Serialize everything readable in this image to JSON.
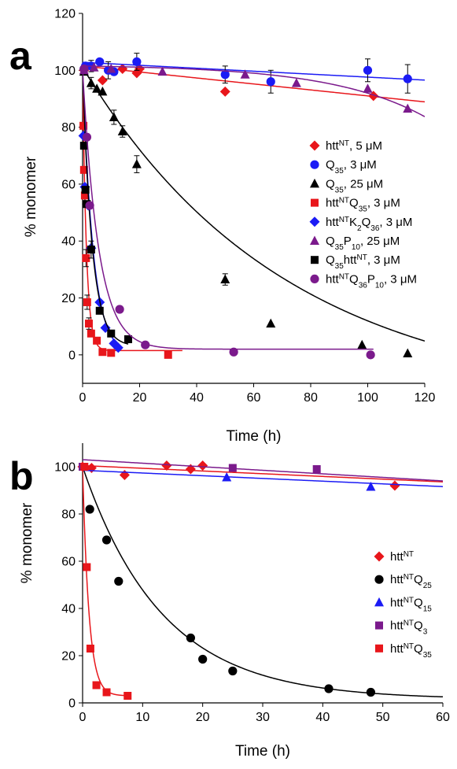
{
  "figure": {
    "panels": [
      "a",
      "b"
    ]
  },
  "chart_data": [
    {
      "panel_label": "a",
      "type": "scatter",
      "xlabel": "Time (h)",
      "ylabel": "% monomer",
      "xlim": [
        0,
        120
      ],
      "ylim": [
        -10,
        120
      ],
      "xticks": [
        0,
        20,
        40,
        60,
        80,
        100,
        120
      ],
      "yticks": [
        0,
        20,
        40,
        60,
        80,
        100,
        120
      ],
      "grid": false,
      "legend_position": "right",
      "series": [
        {
          "name": "htt^NT, 5 μM",
          "label_parts": [
            [
              "htt",
              ""
            ],
            [
              "NT",
              "sup"
            ],
            [
              ", 5 μM",
              ""
            ]
          ],
          "color": "#e8161b",
          "marker": "diamond",
          "points": [
            [
              0.5,
              100
            ],
            [
              1,
              101
            ],
            [
              7,
              96.5
            ],
            [
              14,
              100.5
            ],
            [
              19,
              99
            ],
            [
              20,
              100.5
            ],
            [
              50,
              92.5
            ],
            [
              102,
              91
            ]
          ],
          "fit": {
            "type": "linear",
            "a": 101.5,
            "b": -0.105,
            "xmax": 120
          }
        },
        {
          "name": "Q35, 3 μM",
          "label_parts": [
            [
              "Q",
              ""
            ],
            [
              "35",
              "sub"
            ],
            [
              ", 3 μM",
              ""
            ]
          ],
          "color": "#1b1bf5",
          "marker": "circle",
          "points": [
            [
              0.5,
              100.5
            ],
            [
              1,
              101.5
            ],
            [
              3,
              101.5
            ],
            [
              6,
              103
            ],
            [
              9,
              100
            ],
            [
              11,
              99.5
            ],
            [
              19,
              103
            ],
            [
              50,
              98.5
            ],
            [
              66,
              96
            ],
            [
              100,
              100
            ],
            [
              114,
              97
            ]
          ],
          "error": [
            [
              3,
              2
            ],
            [
              9,
              3
            ],
            [
              19,
              3
            ],
            [
              50,
              3
            ],
            [
              66,
              4
            ],
            [
              100,
              4
            ],
            [
              114,
              5
            ]
          ],
          "fit": {
            "type": "linear",
            "a": 102.8,
            "b": -0.052,
            "xmax": 120
          }
        },
        {
          "name": "Q35, 25 μM",
          "label_parts": [
            [
              "Q",
              ""
            ],
            [
              "35",
              "sub"
            ],
            [
              ", 25 μM",
              ""
            ]
          ],
          "color": "#000000",
          "marker": "triangle",
          "points": [
            [
              0.5,
              99.5
            ],
            [
              3,
              95.5
            ],
            [
              5,
              93.5
            ],
            [
              7,
              92.5
            ],
            [
              11,
              83.5
            ],
            [
              14,
              78.5
            ],
            [
              19,
              67
            ],
            [
              50,
              26.5
            ],
            [
              66,
              11
            ],
            [
              98,
              3.5
            ],
            [
              114,
              0.5
            ]
          ],
          "error": [
            [
              3,
              2
            ],
            [
              11,
              2.5
            ],
            [
              14,
              2
            ],
            [
              19,
              3
            ],
            [
              50,
              2
            ]
          ],
          "fit": {
            "type": "exp_offset",
            "c": -17,
            "amp": 118,
            "k": 0.01405,
            "xmax": 120
          }
        },
        {
          "name": "htt^NTQ35, 3 μM",
          "label_parts": [
            [
              "htt",
              ""
            ],
            [
              "NT",
              "sup"
            ],
            [
              "Q",
              ""
            ],
            [
              "35",
              "sub"
            ],
            [
              ", 3 μM",
              ""
            ]
          ],
          "color": "#e8161b",
          "marker": "square",
          "points": [
            [
              0.3,
              80.5
            ],
            [
              0.5,
              65
            ],
            [
              0.8,
              56
            ],
            [
              1.2,
              34
            ],
            [
              1.6,
              18.5
            ],
            [
              2.2,
              11
            ],
            [
              3,
              7.5
            ],
            [
              5,
              5
            ],
            [
              7,
              1
            ],
            [
              10,
              0.7
            ],
            [
              30,
              0
            ]
          ],
          "error": [
            [
              0.8,
              3
            ],
            [
              1.2,
              3
            ],
            [
              1.6,
              2.5
            ],
            [
              2.2,
              2
            ]
          ],
          "fit": {
            "type": "exp_offset",
            "c": 1.5,
            "amp": 98.5,
            "k": 0.75,
            "xmax": 35
          }
        },
        {
          "name": "htt^NTK2Q36, 3 μM",
          "label_parts": [
            [
              "htt",
              ""
            ],
            [
              "NT",
              "sup"
            ],
            [
              "K",
              ""
            ],
            [
              "2",
              "sub"
            ],
            [
              "Q",
              ""
            ],
            [
              "36",
              "sub"
            ],
            [
              ", 3 μM",
              ""
            ]
          ],
          "color": "#1b1bf5",
          "marker": "diamond",
          "points": [
            [
              0.3,
              77
            ],
            [
              0.8,
              59
            ],
            [
              2,
              52.5
            ],
            [
              3,
              37.5
            ],
            [
              6,
              18.5
            ],
            [
              8,
              9.5
            ],
            [
              11,
              4
            ],
            [
              12.5,
              2.5
            ]
          ],
          "fit": {
            "type": "exp_offset",
            "c": 0,
            "amp": 100,
            "k": 0.27,
            "xmax": 13
          }
        },
        {
          "name": "Q35P10, 25 μM",
          "label_parts": [
            [
              "Q",
              ""
            ],
            [
              "35",
              "sub"
            ],
            [
              "P",
              ""
            ],
            [
              "10",
              "sub"
            ],
            [
              ", 25 μM",
              ""
            ]
          ],
          "color": "#7b1a8c",
          "marker": "triangle",
          "points": [
            [
              0.5,
              100
            ],
            [
              4,
              101
            ],
            [
              10,
              100.5
            ],
            [
              28,
              99.5
            ],
            [
              57,
              98.5
            ],
            [
              75,
              95.5
            ],
            [
              100,
              93.5
            ],
            [
              114,
              86.5
            ]
          ],
          "fit": {
            "type": "exp_growth",
            "a": 102,
            "b": 0.5,
            "k": 0.03,
            "xmax": 120
          }
        },
        {
          "name": "Q35htt^NT, 3 μM",
          "label_parts": [
            [
              "Q",
              ""
            ],
            [
              "35",
              "sub"
            ],
            [
              "htt",
              ""
            ],
            [
              "NT",
              "sup"
            ],
            [
              ", 3 μM",
              ""
            ]
          ],
          "color": "#000000",
          "marker": "square",
          "points": [
            [
              0.5,
              73.5
            ],
            [
              1,
              58
            ],
            [
              1.5,
              53
            ],
            [
              3,
              37
            ],
            [
              6,
              15.5
            ],
            [
              10,
              7.5
            ],
            [
              16,
              5.5
            ]
          ],
          "error": [
            [
              3,
              3
            ]
          ],
          "fit": {
            "type": "exp_offset",
            "c": 3,
            "amp": 97,
            "k": 0.3,
            "xmax": 16
          }
        },
        {
          "name": "htt^NTQ36P10, 3 μM",
          "label_parts": [
            [
              "htt",
              ""
            ],
            [
              "NT",
              "sup"
            ],
            [
              "Q",
              ""
            ],
            [
              "36",
              "sub"
            ],
            [
              "P",
              ""
            ],
            [
              "10",
              "sub"
            ],
            [
              ", 3 μM",
              ""
            ]
          ],
          "color": "#7b1a8c",
          "marker": "circle",
          "points": [
            [
              0.5,
              100.5
            ],
            [
              1.5,
              76.5
            ],
            [
              2.5,
              52.5
            ],
            [
              13,
              16
            ],
            [
              22,
              3.5
            ],
            [
              53,
              1
            ],
            [
              101,
              0
            ]
          ],
          "fit": {
            "type": "exp_offset",
            "c": 2,
            "amp": 98,
            "k": 0.18,
            "xmax": 102
          }
        }
      ]
    },
    {
      "panel_label": "b",
      "type": "scatter",
      "xlabel": "Time  (h)",
      "ylabel": "% monomer",
      "xlim": [
        0,
        60
      ],
      "ylim": [
        0,
        110
      ],
      "xticks": [
        0,
        10,
        20,
        30,
        40,
        50,
        60
      ],
      "yticks": [
        0,
        20,
        40,
        60,
        80,
        100
      ],
      "grid": false,
      "legend_position": "right",
      "series": [
        {
          "name": "htt^NT",
          "label_parts": [
            [
              "htt",
              ""
            ],
            [
              "NT",
              "sup"
            ]
          ],
          "color": "#e8161b",
          "marker": "diamond",
          "points": [
            [
              0,
              100
            ],
            [
              1.5,
              99.5
            ],
            [
              7,
              96.5
            ],
            [
              14,
              100.5
            ],
            [
              18,
              99
            ],
            [
              20,
              100.5
            ],
            [
              52,
              92
            ]
          ],
          "fit": {
            "type": "linear",
            "a": 100.5,
            "b": -0.115,
            "xmax": 60
          }
        },
        {
          "name": "htt^NTQ25",
          "label_parts": [
            [
              "htt",
              ""
            ],
            [
              "NT",
              "sup"
            ],
            [
              "Q",
              ""
            ],
            [
              "25",
              "sub"
            ]
          ],
          "color": "#000000",
          "marker": "circle",
          "points": [
            [
              1.2,
              82
            ],
            [
              4,
              69
            ],
            [
              6,
              51.5
            ],
            [
              18,
              27.5
            ],
            [
              20,
              18.5
            ],
            [
              25,
              13.5
            ],
            [
              41,
              6
            ],
            [
              48,
              4.5
            ]
          ],
          "fit": {
            "type": "exp_offset",
            "c": 1.5,
            "amp": 98.5,
            "k": 0.0755,
            "xmax": 60
          }
        },
        {
          "name": "htt^NTQ15",
          "label_parts": [
            [
              "htt",
              ""
            ],
            [
              "NT",
              "sup"
            ],
            [
              "Q",
              ""
            ],
            [
              "15",
              "sub"
            ]
          ],
          "color": "#1b1bf5",
          "marker": "triangle",
          "points": [
            [
              24,
              95.5
            ],
            [
              48,
              91.5
            ]
          ],
          "fit": {
            "type": "linear",
            "a": 98.5,
            "b": -0.115,
            "xmax": 60
          }
        },
        {
          "name": "htt^NTQ3",
          "label_parts": [
            [
              "htt",
              ""
            ],
            [
              "NT",
              "sup"
            ],
            [
              "Q",
              ""
            ],
            [
              "3",
              "sub"
            ]
          ],
          "color": "#7b1a8c",
          "marker": "square",
          "points": [
            [
              0,
              100
            ],
            [
              25,
              99.5
            ],
            [
              39,
              99
            ]
          ],
          "fit": {
            "type": "linear",
            "a": 103,
            "b": -0.15,
            "xmax": 60
          }
        },
        {
          "name": "htt^NTQ35",
          "label_parts": [
            [
              "htt",
              ""
            ],
            [
              "NT",
              "sup"
            ],
            [
              "Q",
              ""
            ],
            [
              "35",
              "sub"
            ]
          ],
          "color": "#e8161b",
          "marker": "square",
          "points": [
            [
              0.3,
              100
            ],
            [
              0.7,
              57.5
            ],
            [
              1.3,
              23
            ],
            [
              2.3,
              7.5
            ],
            [
              4,
              4.5
            ],
            [
              7.5,
              3
            ]
          ],
          "fit": {
            "type": "exp_offset",
            "c": 3,
            "amp": 97,
            "k": 0.95,
            "xmax": 8
          }
        }
      ]
    }
  ]
}
